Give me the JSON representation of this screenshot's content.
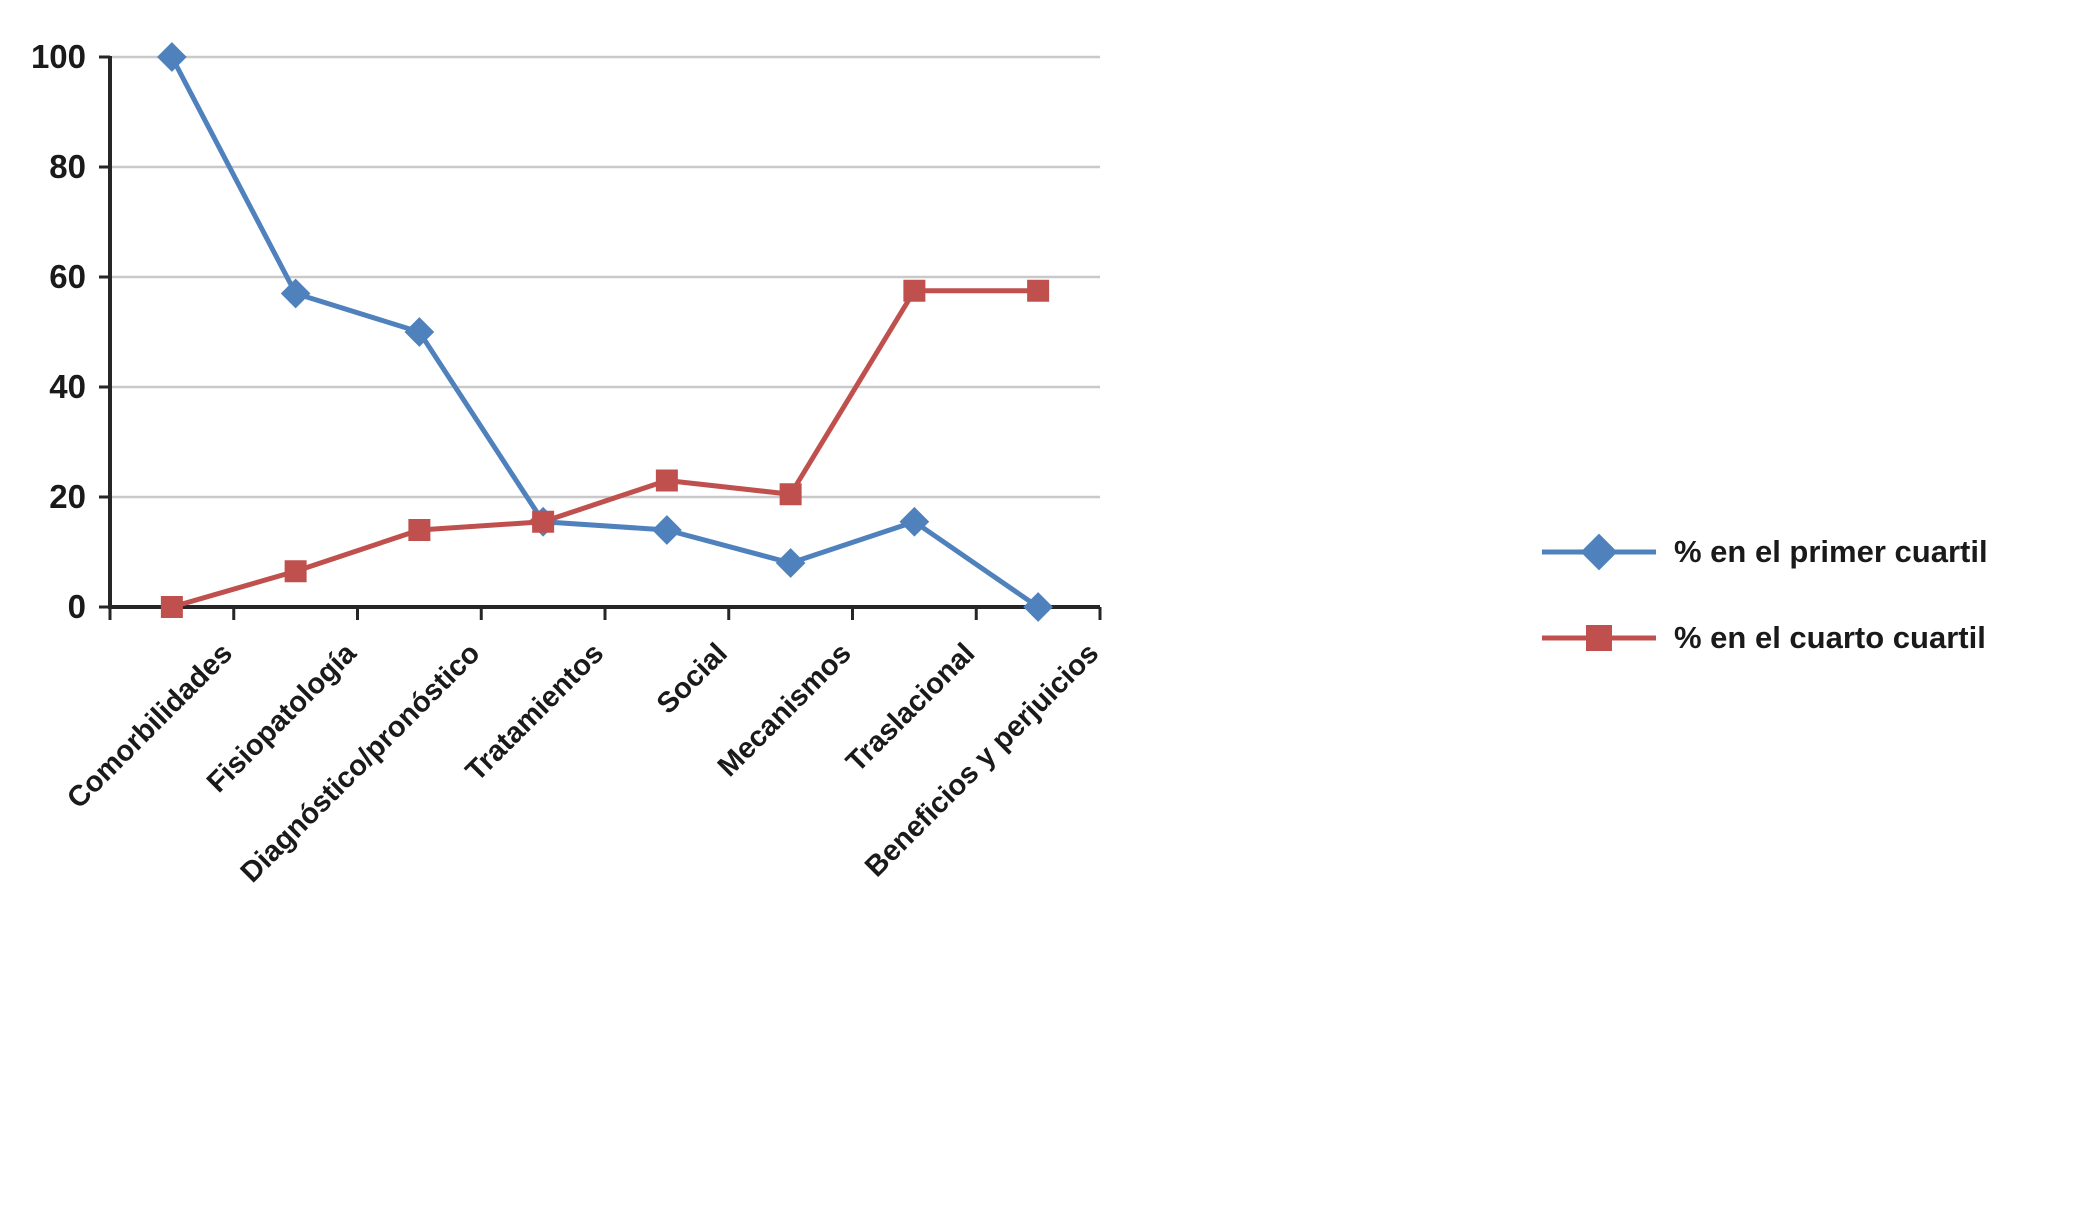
{
  "chart_data": {
    "type": "line",
    "categories": [
      "Comorbilidades",
      "Fisiopatología",
      "Diagnóstico/pronóstico",
      "Tratamientos",
      "Social",
      "Mecanismos",
      "Traslacional",
      "Beneficios y perjuicios"
    ],
    "series": [
      {
        "name": "% en el primer cuartil",
        "color": "#4F81BD",
        "marker": "diamond",
        "values": [
          100,
          57,
          50,
          15.5,
          14,
          8,
          15.5,
          0
        ]
      },
      {
        "name": "% en el cuarto cuartil",
        "color": "#C0504D",
        "marker": "square",
        "values": [
          0,
          6.5,
          14,
          15.5,
          23,
          20.5,
          57.5,
          57.5
        ]
      }
    ],
    "title": "",
    "xlabel": "",
    "ylabel": "",
    "ylim": [
      0,
      100
    ],
    "yticks": [
      0,
      20,
      40,
      60,
      80,
      100
    ],
    "grid": true,
    "legend_position": "right",
    "grid_color": "#C9C9C9",
    "axis_color": "#262626"
  }
}
